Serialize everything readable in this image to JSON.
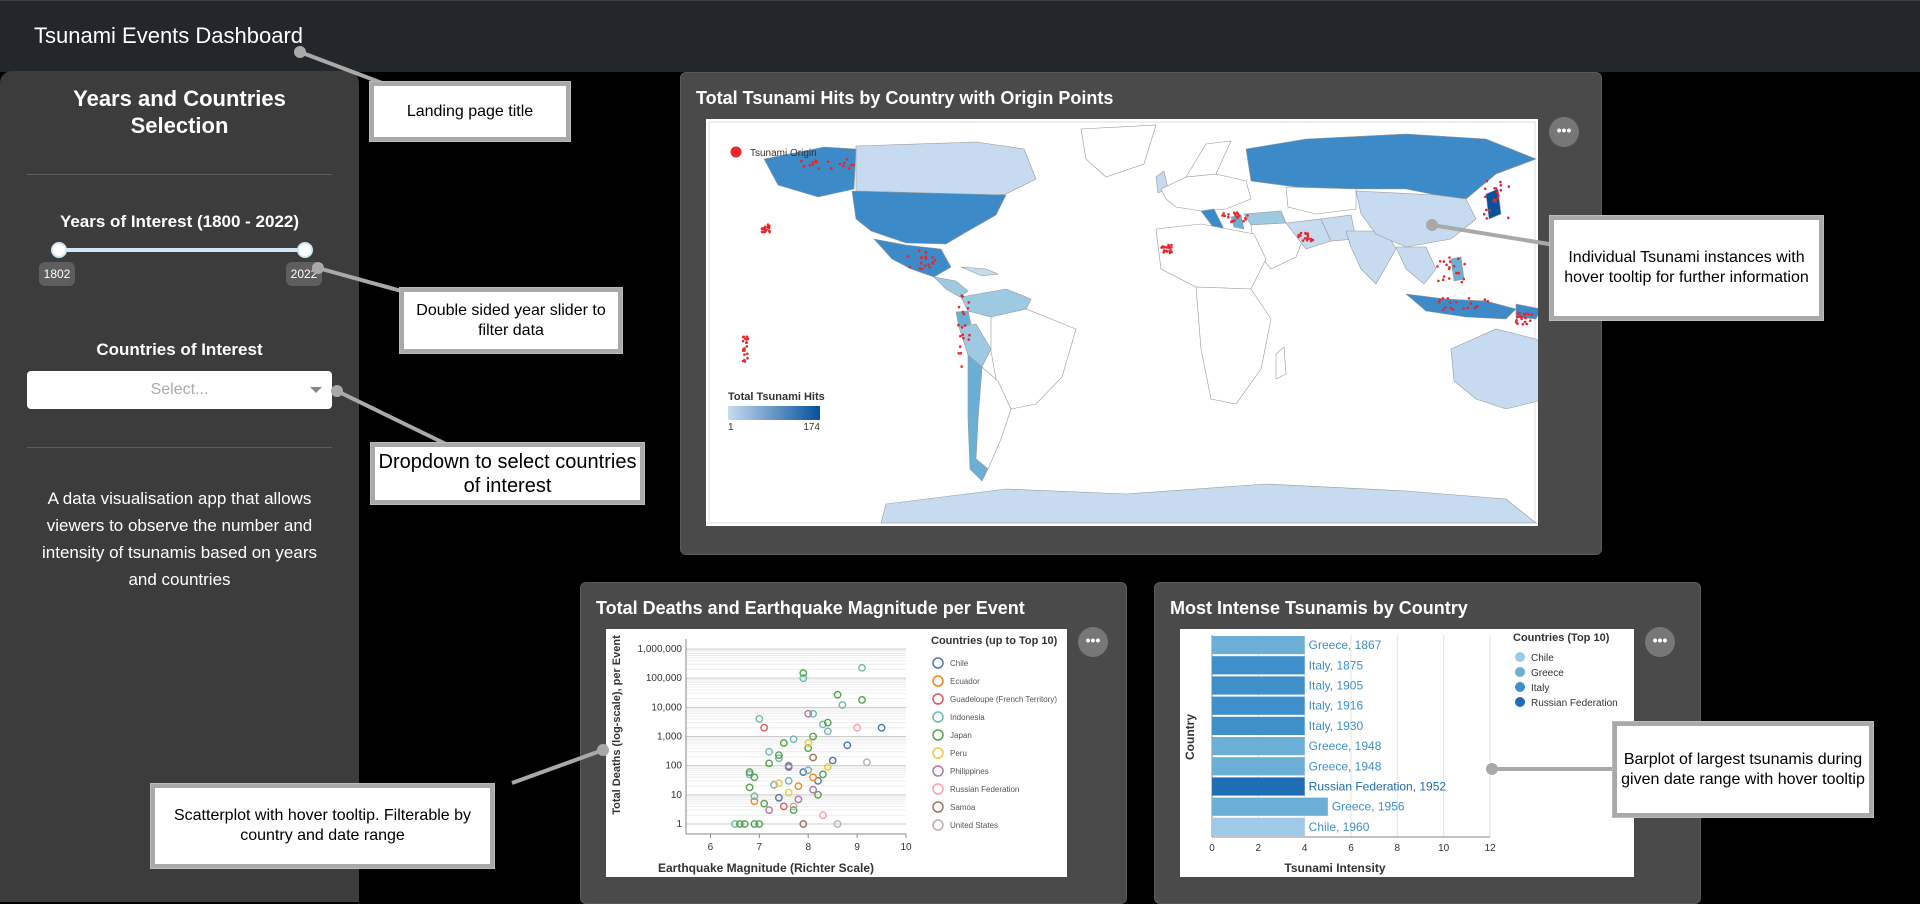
{
  "app": {
    "title": "Tsunami Events Dashboard"
  },
  "sidebar": {
    "title_line1": "Years and Countries",
    "title_line2": "Selection",
    "years_label": "Years of Interest (1800 - 2022)",
    "year_min_label": "1802",
    "year_max_label": "2022",
    "range_min": 1800,
    "range_max": 2022,
    "selected_min": 1802,
    "selected_max": 2022,
    "countries_label": "Countries of Interest",
    "countries_placeholder": "Select...",
    "description": "A data visualisation app that allows viewers to observe the number and intensity of tsunamis based on years and countries"
  },
  "map_card": {
    "title": "Total Tsunami Hits by Country with Origin Points",
    "legend_origin": "Tsunami Origin",
    "legend_title": "Total Tsunami Hits",
    "legend_min": "1",
    "legend_max": "174",
    "menu_label": "•••"
  },
  "scatter_card": {
    "title": "Total Deaths and Earthquake Magnitude per Event",
    "menu_label": "•••",
    "chart_data": {
      "type": "scatter",
      "xlabel": "Earthquake Magnitude (Richter Scale)",
      "ylabel": "Total Deaths (log-scale), per Event",
      "xlim": [
        5.5,
        10
      ],
      "x_ticks": [
        "6",
        "7",
        "8",
        "9",
        "10"
      ],
      "y_scale": "log",
      "y_ticks": [
        "1,000,000",
        "100,000",
        "10,000",
        "1,000",
        "100",
        "10",
        "1"
      ],
      "legend_title": "Countries (up to Top 10)",
      "legend_placement": "right",
      "series": [
        {
          "name": "Chile",
          "color": "#4c78a8",
          "points": [
            [
              9.5,
              2000
            ],
            [
              8.5,
              150
            ],
            [
              8.2,
              30
            ],
            [
              7.6,
              90
            ],
            [
              8.8,
              500
            ],
            [
              7.4,
              8
            ],
            [
              7.9,
              60
            ]
          ]
        },
        {
          "name": "Ecuador",
          "color": "#f58518",
          "points": [
            [
              7.8,
              20
            ],
            [
              8.1,
              40
            ],
            [
              6.9,
              6
            ]
          ]
        },
        {
          "name": "Guadeloupe (French Territory)",
          "color": "#e45756",
          "points": [
            [
              7.1,
              2000
            ],
            [
              7.5,
              4
            ]
          ]
        },
        {
          "name": "Indonesia",
          "color": "#72b7b2",
          "points": [
            [
              9.1,
              227000
            ],
            [
              7.9,
              100000
            ],
            [
              8.4,
              1500
            ],
            [
              7.7,
              800
            ],
            [
              7.2,
              300
            ],
            [
              6.8,
              50
            ],
            [
              7.0,
              4000
            ],
            [
              8.1,
              6000
            ],
            [
              7.4,
              180
            ],
            [
              6.9,
              9
            ],
            [
              8.3,
              2600
            ],
            [
              7.6,
              30
            ],
            [
              8.7,
              12000
            ],
            [
              7.3,
              22
            ],
            [
              6.5,
              1
            ],
            [
              8.0,
              70
            ]
          ]
        },
        {
          "name": "Japan",
          "color": "#54a24b",
          "points": [
            [
              9.1,
              18000
            ],
            [
              8.6,
              27000
            ],
            [
              8.4,
              3000
            ],
            [
              7.9,
              150000
            ],
            [
              8.1,
              1000
            ],
            [
              7.2,
              120
            ],
            [
              6.8,
              60
            ],
            [
              7.5,
              600
            ],
            [
              6.6,
              1
            ],
            [
              6.7,
              1
            ],
            [
              6.9,
              1
            ],
            [
              7.0,
              1
            ],
            [
              8.0,
              400
            ],
            [
              7.4,
              230
            ],
            [
              8.2,
              10
            ],
            [
              6.8,
              18
            ],
            [
              7.7,
              3
            ],
            [
              7.1,
              5
            ],
            [
              6.9,
              40
            ],
            [
              8.3,
              50
            ]
          ]
        },
        {
          "name": "Peru",
          "color": "#eeca3b",
          "points": [
            [
              8.0,
              600
            ],
            [
              7.4,
              25
            ],
            [
              8.4,
              90
            ],
            [
              7.6,
              12
            ]
          ]
        },
        {
          "name": "Philippines",
          "color": "#b279a2",
          "points": [
            [
              7.6,
              100
            ],
            [
              8.0,
              6000
            ],
            [
              7.2,
              3
            ],
            [
              7.8,
              7
            ],
            [
              8.1,
              15
            ]
          ]
        },
        {
          "name": "Russian Federation",
          "color": "#ff9da6",
          "points": [
            [
              9.0,
              2000
            ],
            [
              8.3,
              2
            ],
            [
              7.9,
              1
            ]
          ]
        },
        {
          "name": "Samoa",
          "color": "#9d755d",
          "points": [
            [
              8.1,
              190
            ],
            [
              7.9,
              1
            ]
          ]
        },
        {
          "name": "United States",
          "color": "#bab0ac",
          "points": [
            [
              9.2,
              130
            ],
            [
              8.6,
              1
            ],
            [
              7.7,
              4
            ]
          ]
        }
      ]
    }
  },
  "bar_card": {
    "title": "Most Intense Tsunamis by Country",
    "menu_label": "•••",
    "chart_data": {
      "type": "bar",
      "orientation": "horizontal",
      "xlabel": "Tsunami Intensity",
      "ylabel": "Country",
      "xlim": [
        0,
        12
      ],
      "x_ticks": [
        "0",
        "2",
        "4",
        "6",
        "8",
        "10",
        "12"
      ],
      "legend_title": "Countries (Top 10)",
      "legend_placement": "top-right",
      "legend": [
        {
          "name": "Chile",
          "color": "#9ecae9"
        },
        {
          "name": "Greece",
          "color": "#6baed6"
        },
        {
          "name": "Italy",
          "color": "#3f8fcb"
        },
        {
          "name": "Russian Federation",
          "color": "#1f6db5"
        }
      ],
      "bars": [
        {
          "label": "Greece, 1867",
          "country": "Greece",
          "value": 4
        },
        {
          "label": "Italy, 1875",
          "country": "Italy",
          "value": 4
        },
        {
          "label": "Italy, 1905",
          "country": "Italy",
          "value": 4
        },
        {
          "label": "Italy, 1916",
          "country": "Italy",
          "value": 4
        },
        {
          "label": "Italy, 1930",
          "country": "Italy",
          "value": 4
        },
        {
          "label": "Greece, 1948",
          "country": "Greece",
          "value": 4
        },
        {
          "label": "Greece, 1948",
          "country": "Greece",
          "value": 4
        },
        {
          "label": "Russian Federation, 1952",
          "country": "Russian Federation",
          "value": 4
        },
        {
          "label": "Greece, 1956",
          "country": "Greece",
          "value": 5
        },
        {
          "label": "Chile, 1960",
          "country": "Chile",
          "value": 4
        }
      ]
    }
  },
  "callouts": {
    "title_note": "Landing page title",
    "slider_note": "Double sided year slider to filter data",
    "dropdown_note": "Dropdown to select countries of interest",
    "map_note": "Individual Tsunami instances with hover tooltip for further information",
    "scatter_note": "Scatterplot with hover tooltip. Filterable by country and date range",
    "bar_note": "Barplot of largest tsunamis during given date range with hover tooltip"
  },
  "colors": {
    "map_low": "#c6dbef",
    "map_high": "#08519c",
    "origin_dot": "#e8262c"
  }
}
